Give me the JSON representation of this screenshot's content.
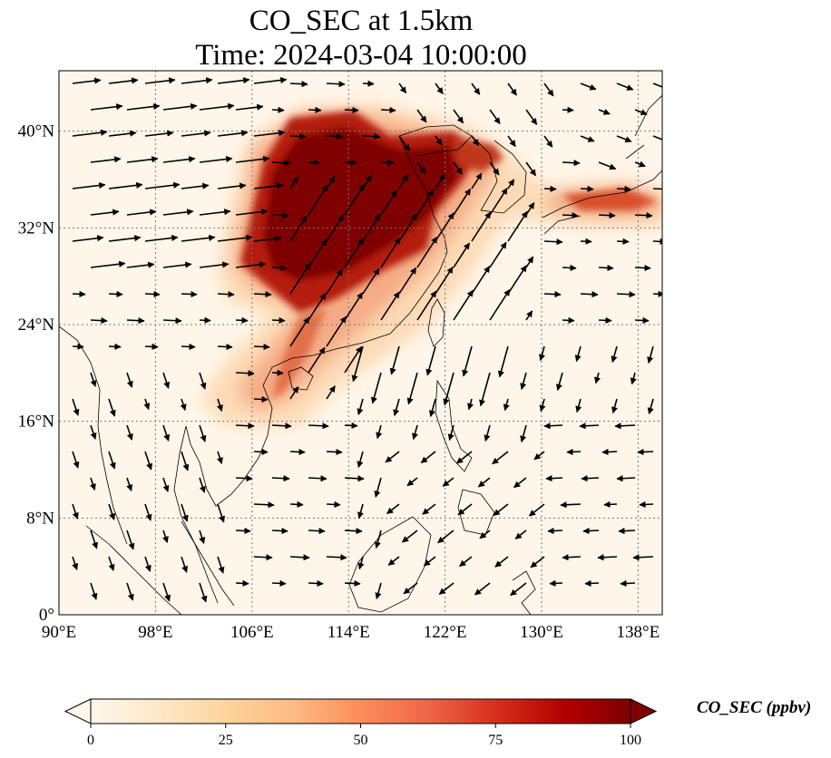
{
  "title": {
    "line1": "CO_SEC at 1.5km",
    "line2": "Time: 2024-03-04 10:00:00"
  },
  "map": {
    "lon_range": [
      90,
      140
    ],
    "lat_range": [
      0,
      45
    ],
    "lon_ticks": [
      {
        "value": 90,
        "label": "90°E"
      },
      {
        "value": 98,
        "label": "98°E"
      },
      {
        "value": 106,
        "label": "106°E"
      },
      {
        "value": 114,
        "label": "114°E"
      },
      {
        "value": 122,
        "label": "122°E"
      },
      {
        "value": 130,
        "label": "130°E"
      },
      {
        "value": 138,
        "label": "138°E"
      }
    ],
    "lat_ticks": [
      {
        "value": 0,
        "label": "0°"
      },
      {
        "value": 8,
        "label": "8°N"
      },
      {
        "value": 16,
        "label": "16°N"
      },
      {
        "value": 24,
        "label": "24°N"
      },
      {
        "value": 32,
        "label": "32°N"
      },
      {
        "value": 40,
        "label": "40°N"
      }
    ],
    "gridlines": "dotted",
    "field": "CO_SEC concentration, highest over North China Plain, Sichuan Basin, Korea and southern Japan",
    "wind_vectors": true
  },
  "colorbar": {
    "label": "CO_SEC (ppbv)",
    "ticks": [
      "0",
      "25",
      "50",
      "75",
      "100"
    ],
    "range": [
      0,
      100
    ],
    "extend": "both",
    "colormap": [
      "#fff7ec",
      "#fee8c8",
      "#fdd49e",
      "#fdbb84",
      "#fc8d59",
      "#ef6548",
      "#d7301f",
      "#b30000",
      "#7f0000"
    ]
  }
}
